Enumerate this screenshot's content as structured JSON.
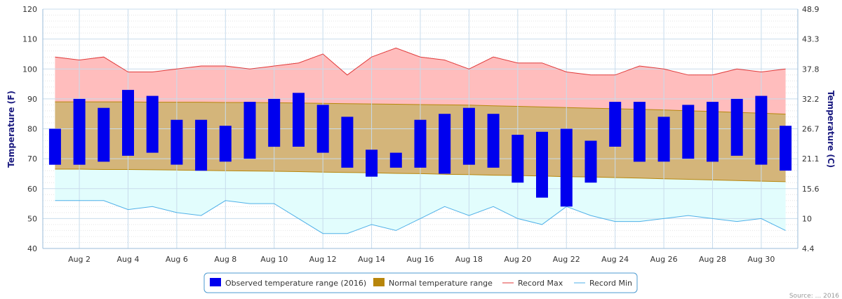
{
  "chart_data": {
    "type": "bar",
    "title": "",
    "y_left": {
      "label": "Temperature (F)",
      "ticks": [
        40,
        50,
        60,
        70,
        80,
        90,
        100,
        110,
        120
      ],
      "range": [
        40,
        120
      ]
    },
    "y_right": {
      "label": "Temperature (C)",
      "ticks": [
        "4.4",
        "10",
        "15.6",
        "21.1",
        "26.7",
        "32.2",
        "37.8",
        "43.3",
        "48.9"
      ]
    },
    "x": {
      "days": [
        1,
        2,
        3,
        4,
        5,
        6,
        7,
        8,
        9,
        10,
        11,
        12,
        13,
        14,
        15,
        16,
        17,
        18,
        19,
        20,
        21,
        22,
        23,
        24,
        25,
        26,
        27,
        28,
        29,
        30,
        31
      ],
      "tick_labels": [
        "Aug 2",
        "Aug 4",
        "Aug 6",
        "Aug 8",
        "Aug 10",
        "Aug 12",
        "Aug 14",
        "Aug 16",
        "Aug 18",
        "Aug 20",
        "Aug 22",
        "Aug 24",
        "Aug 26",
        "Aug 28",
        "Aug 30"
      ]
    },
    "grid": true,
    "legend_placement": "bottom-center",
    "series": [
      {
        "name": "Observed temperature range (2016)",
        "type": "columnrange",
        "color": "#0000ee",
        "low": [
          68,
          68,
          69,
          71,
          72,
          68,
          66,
          69,
          70,
          74,
          74,
          72,
          67,
          64,
          67,
          67,
          65,
          68,
          67,
          62,
          57,
          54,
          62,
          74,
          69,
          69,
          70,
          69,
          71,
          68,
          66
        ],
        "high": [
          80,
          90,
          87,
          93,
          91,
          83,
          83,
          81,
          89,
          90,
          92,
          88,
          84,
          73,
          72,
          83,
          85,
          87,
          85,
          78,
          79,
          80,
          76,
          89,
          89,
          84,
          88,
          89,
          90,
          91,
          81
        ]
      },
      {
        "name": "Normal temperature range",
        "type": "arearange",
        "color": "#b8860b",
        "low": [
          66.5,
          66.5,
          66.4,
          66.4,
          66.3,
          66.2,
          66.1,
          66.0,
          65.9,
          65.8,
          65.7,
          65.5,
          65.4,
          65.3,
          65.1,
          65.0,
          64.8,
          64.7,
          64.5,
          64.4,
          64.2,
          64.0,
          63.9,
          63.7,
          63.5,
          63.3,
          63.1,
          62.9,
          62.7,
          62.5,
          62.3
        ],
        "high": [
          89.0,
          89.0,
          89.0,
          89.0,
          88.9,
          88.9,
          88.9,
          88.8,
          88.8,
          88.7,
          88.6,
          88.5,
          88.4,
          88.3,
          88.2,
          88.1,
          88.0,
          87.9,
          87.7,
          87.5,
          87.3,
          87.1,
          86.9,
          86.7,
          86.5,
          86.3,
          86.0,
          85.8,
          85.5,
          85.2,
          84.9
        ]
      },
      {
        "name": "Record Max",
        "type": "line",
        "color": "#e03a3a",
        "values": [
          104,
          103,
          104,
          99,
          99,
          100,
          101,
          101,
          100,
          101,
          102,
          105,
          98,
          104,
          107,
          104,
          103,
          100,
          104,
          102,
          102,
          99,
          98,
          98,
          101,
          100,
          98,
          98,
          100,
          99,
          100
        ]
      },
      {
        "name": "Record Min",
        "type": "line",
        "color": "#4fb0e8",
        "values": [
          56,
          56,
          56,
          53,
          54,
          52,
          51,
          56,
          55,
          55,
          50,
          45,
          45,
          48,
          46,
          50,
          54,
          51,
          54,
          50,
          48,
          54,
          51,
          49,
          49,
          50,
          51,
          50,
          49,
          50,
          46
        ]
      }
    ]
  },
  "colors": {
    "max_fill": "#ffbdbd",
    "min_fill": "#e2fdfd",
    "normal_fill": "#d4b57a",
    "observed": "#0000ee",
    "grid": "#c8dcec",
    "minor_grid": "#e4e4e4"
  },
  "credit": "Source: ... 2016"
}
